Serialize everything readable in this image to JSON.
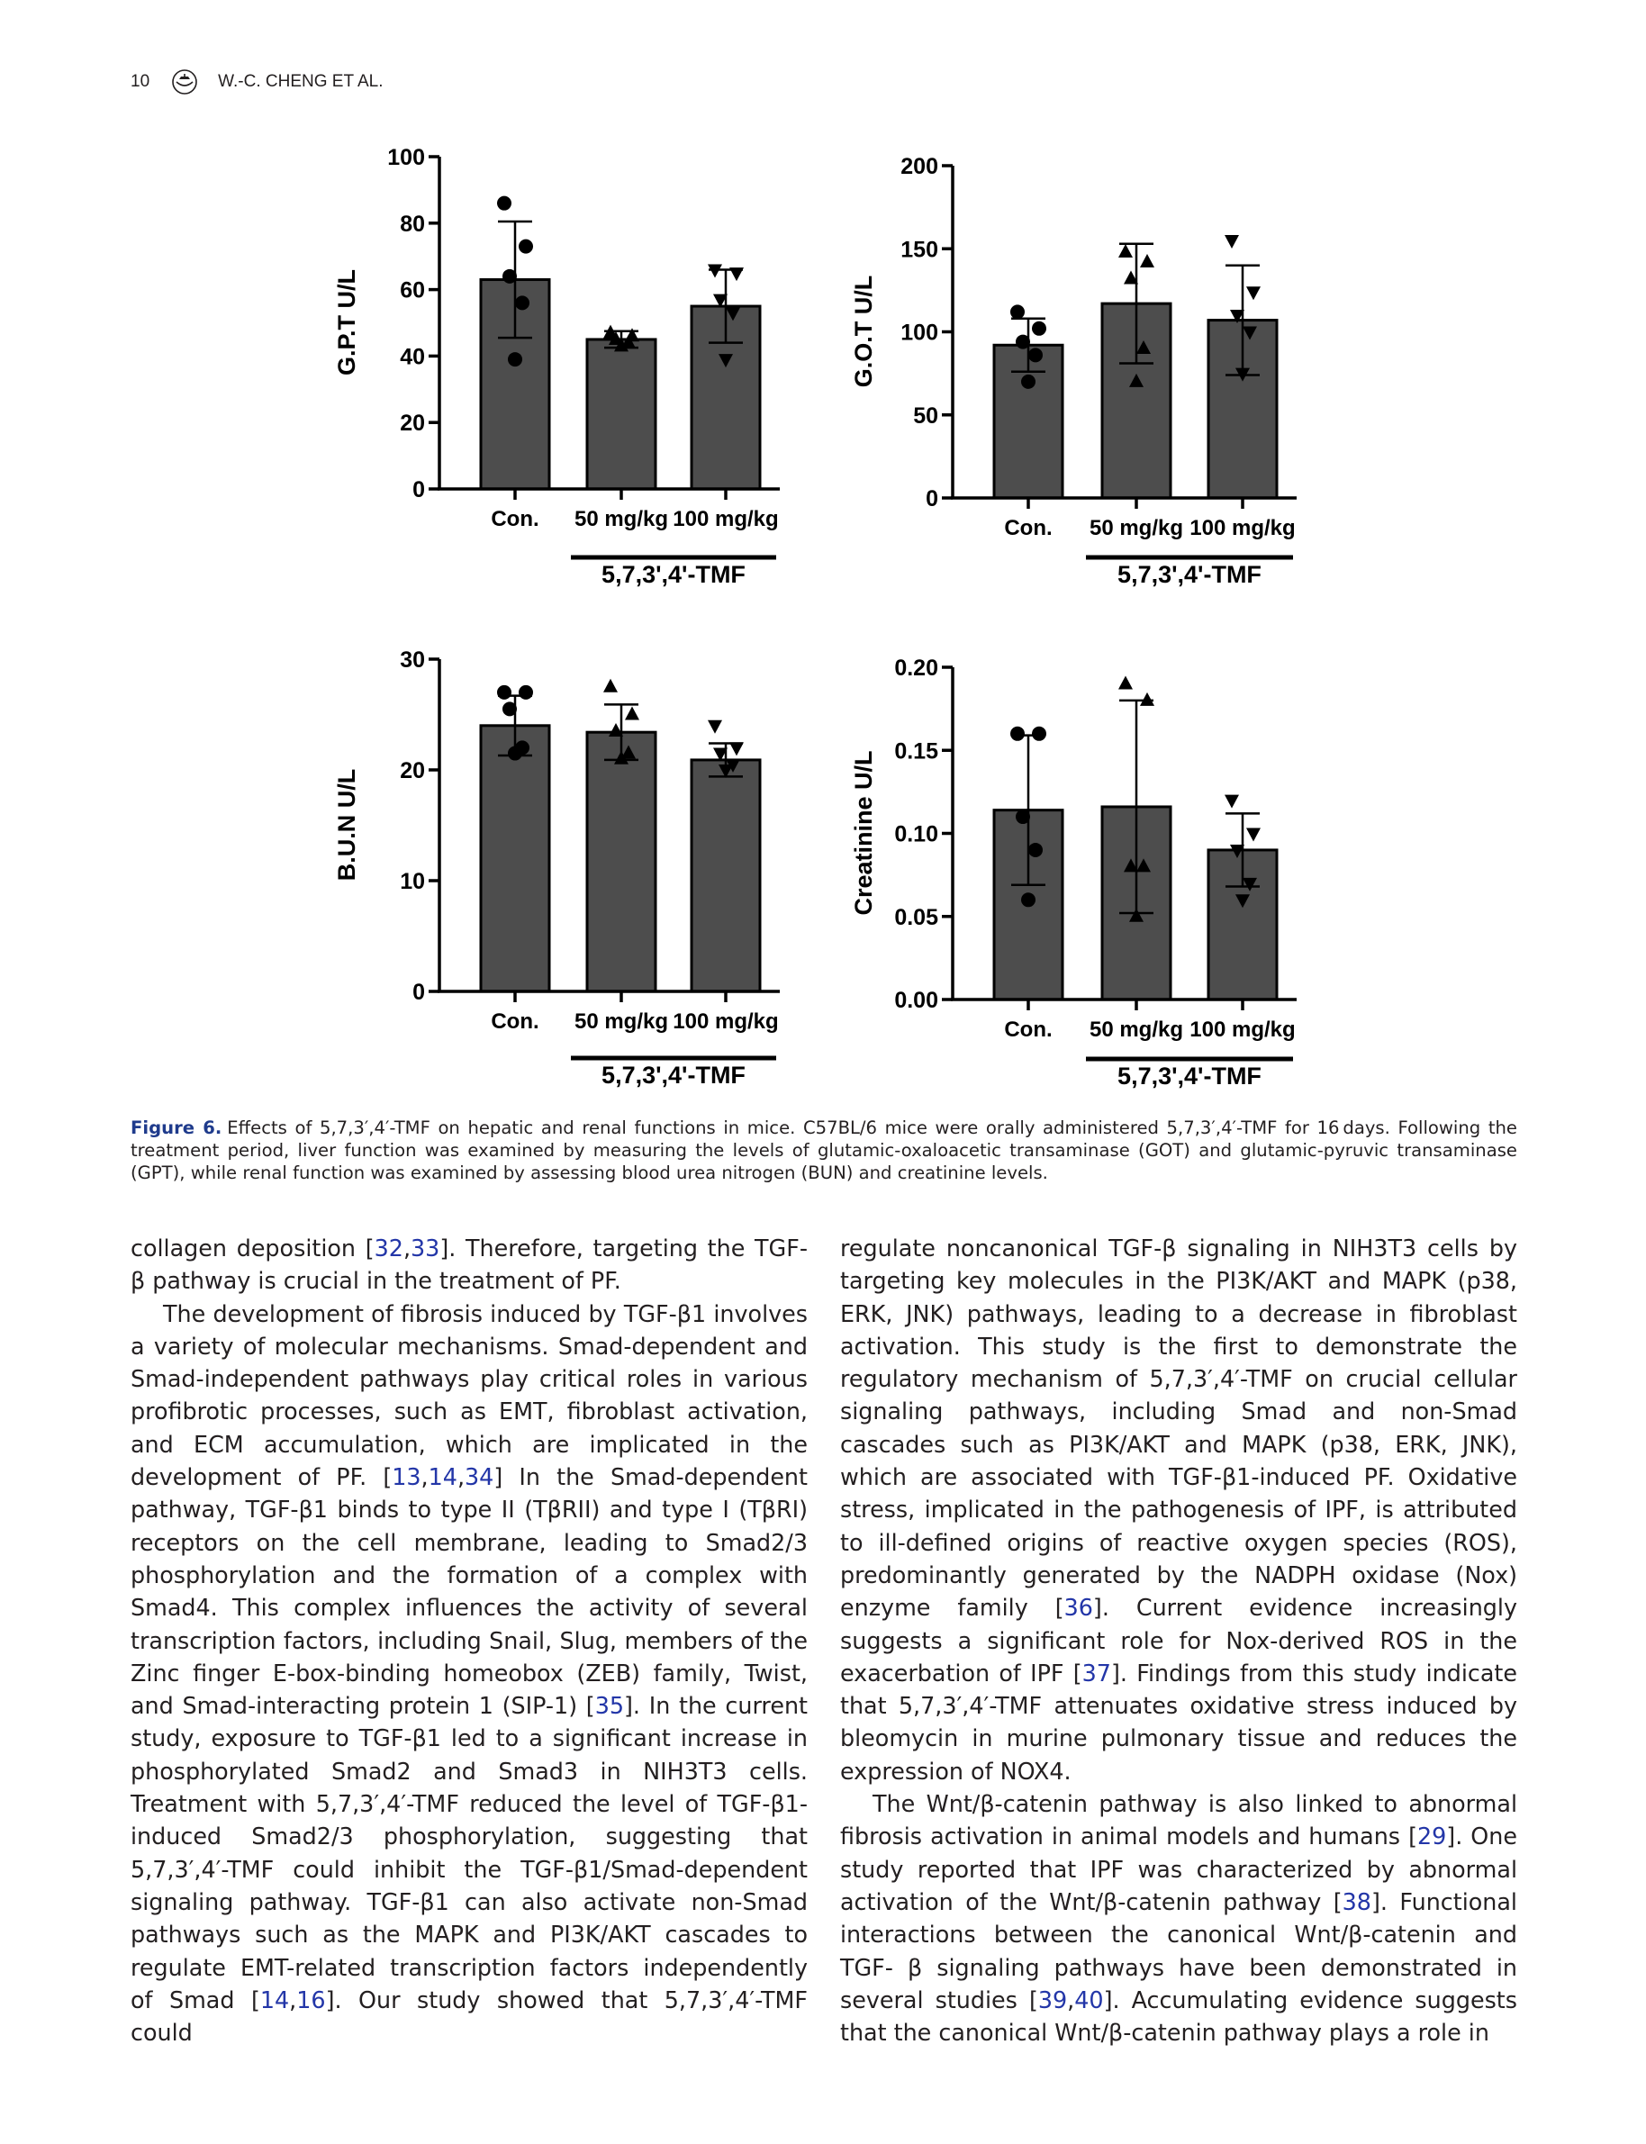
{
  "header": {
    "page_number": "10",
    "authors": "W.-C. CHENG ET AL."
  },
  "chart_data": [
    {
      "type": "bar",
      "ylabel": "G.P.T U/L",
      "categories": [
        "Con.",
        "50 mg/kg",
        "100 mg/kg"
      ],
      "group_label": "5,7,3',4'-TMF",
      "ylim": [
        0,
        100
      ],
      "yticks": [
        "0",
        "20",
        "40",
        "60",
        "80",
        "100"
      ],
      "tick_values": [
        0,
        20,
        40,
        60,
        80,
        100
      ],
      "values": [
        63,
        45,
        55
      ],
      "errors": [
        17.5,
        2.5,
        11
      ],
      "points": [
        [
          86,
          73,
          64,
          56,
          39
        ],
        [
          47,
          46,
          45,
          44,
          43
        ],
        [
          66,
          65,
          57,
          53,
          39
        ]
      ],
      "markers": [
        "circle",
        "triangle-up",
        "triangle-down"
      ]
    },
    {
      "type": "bar",
      "ylabel": "G.O.T U/L",
      "categories": [
        "Con.",
        "50 mg/kg",
        "100 mg/kg"
      ],
      "group_label": "5,7,3',4'-TMF",
      "ylim": [
        0,
        200
      ],
      "yticks": [
        "0",
        "50",
        "100",
        "150",
        "200"
      ],
      "tick_values": [
        0,
        50,
        100,
        150,
        200
      ],
      "values": [
        92,
        117,
        107
      ],
      "errors": [
        16,
        36,
        33
      ],
      "points": [
        [
          112,
          102,
          94,
          86,
          70
        ],
        [
          148,
          142,
          132,
          90,
          70
        ],
        [
          155,
          124,
          110,
          100,
          75
        ]
      ],
      "markers": [
        "circle",
        "triangle-up",
        "triangle-down"
      ]
    },
    {
      "type": "bar",
      "ylabel": "B.U.N U/L",
      "categories": [
        "Con.",
        "50 mg/kg",
        "100 mg/kg"
      ],
      "group_label": "5,7,3',4'-TMF",
      "ylim": [
        0,
        30
      ],
      "yticks": [
        "0",
        "10",
        "20",
        "30"
      ],
      "tick_values": [
        0,
        10,
        20,
        30
      ],
      "values": [
        24,
        23.4,
        20.9
      ],
      "errors": [
        2.7,
        2.5,
        1.5
      ],
      "points": [
        [
          27,
          27,
          25.5,
          22,
          21.5
        ],
        [
          27.5,
          25,
          23.5,
          21.5,
          21
        ],
        [
          24,
          22,
          21.5,
          20.5,
          20
        ]
      ],
      "markers": [
        "circle",
        "triangle-up",
        "triangle-down"
      ]
    },
    {
      "type": "bar",
      "ylabel": "Creatinine U/L",
      "categories": [
        "Con.",
        "50 mg/kg",
        "100 mg/kg"
      ],
      "group_label": "5,7,3',4'-TMF",
      "ylim": [
        0,
        0.2
      ],
      "yticks": [
        "0.00",
        "0.05",
        "0.10",
        "0.15",
        "0.20"
      ],
      "tick_values": [
        0,
        0.05,
        0.1,
        0.15,
        0.2
      ],
      "values": [
        0.114,
        0.116,
        0.09
      ],
      "errors": [
        0.045,
        0.064,
        0.022
      ],
      "points": [
        [
          0.16,
          0.16,
          0.11,
          0.09,
          0.06
        ],
        [
          0.19,
          0.18,
          0.08,
          0.08,
          0.05
        ],
        [
          0.12,
          0.1,
          0.09,
          0.07,
          0.06
        ]
      ],
      "markers": [
        "circle",
        "triangle-up",
        "triangle-down"
      ]
    }
  ],
  "caption": {
    "label": "Figure 6.",
    "text": "Effects of 5,7,3′,4′-TMF on hepatic and renal functions in mice. C57BL/6 mice were orally administered 5,7,3′,4′-TMF for 16 days. Following the treatment period, liver function was examined by measuring the levels of glutamic-oxaloacetic transaminase (GOT) and glutamic-pyruvic transaminase (GPT), while renal function was examined by assessing blood urea nitrogen (BUN) and creatinine levels."
  },
  "body": {
    "left": [
      {
        "indent": false,
        "segments": [
          {
            "t": "collagen deposition ["
          },
          {
            "t": "32",
            "ref": true
          },
          {
            "t": ","
          },
          {
            "t": "33",
            "ref": true
          },
          {
            "t": "]. Therefore, targeting the TGF-β pathway is crucial in the treatment of PF."
          }
        ]
      },
      {
        "indent": true,
        "segments": [
          {
            "t": "The development of fibrosis induced by TGF-β1 involves a variety of molecular mechanisms. Smad-dependent and Smad-independent pathways play critical roles in various profibrotic processes, such as EMT, fibroblast activation, and ECM accumulation, which are implicated in the development of PF. ["
          },
          {
            "t": "13",
            "ref": true
          },
          {
            "t": ","
          },
          {
            "t": "14",
            "ref": true
          },
          {
            "t": ","
          },
          {
            "t": "34",
            "ref": true
          },
          {
            "t": "] In the Smad-dependent pathway, TGF-β1 binds to type II (TβRII) and type I (TβRI) receptors on the cell membrane, leading to Smad2/3 phosphorylation and the formation of a complex with Smad4. This complex influences the activity of several transcription factors, including Snail, Slug, members of the Zinc finger E-box-binding homeobox (ZEB) family, Twist, and Smad-interacting protein 1 (SIP-1) ["
          },
          {
            "t": "35",
            "ref": true
          },
          {
            "t": "]. In the current study, exposure to TGF-β1 led to a significant increase in phosphorylated Smad2 and Smad3 in NIH3T3 cells. Treatment with 5,7,3′,4′-TMF reduced the level of TGF-β1-induced Smad2/3 phosphorylation, suggesting that 5,7,3′,4′-TMF could inhibit the TGF-β1/Smad-dependent signaling pathway. TGF-β1 can also activate non-Smad pathways such as the MAPK and PI3K/AKT cascades to regulate EMT-related transcription factors independently of Smad ["
          },
          {
            "t": "14",
            "ref": true
          },
          {
            "t": ","
          },
          {
            "t": "16",
            "ref": true
          },
          {
            "t": "]. Our study showed that 5,7,3′,4′-TMF could"
          }
        ]
      }
    ],
    "right": [
      {
        "indent": false,
        "segments": [
          {
            "t": "regulate noncanonical TGF-β signaling in NIH3T3 cells by targeting key molecules in the PI3K/AKT and MAPK (p38, ERK, JNK) pathways, leading to a decrease in fibroblast activation. This study is the first to demonstrate the regulatory mechanism of 5,7,3′,4′-TMF on crucial cellular signaling pathways, including Smad and non-Smad cascades such as PI3K/AKT and MAPK (p38, ERK, JNK), which are associated with TGF-β1-induced PF. Oxidative stress, implicated in the pathogenesis of IPF, is attributed to ill-defined origins of reactive oxygen species (ROS), predominantly generated by the NADPH oxidase (Nox) enzyme family ["
          },
          {
            "t": "36",
            "ref": true
          },
          {
            "t": "]. Current evidence increasingly suggests a significant role for Nox-derived ROS in the exacerbation of IPF ["
          },
          {
            "t": "37",
            "ref": true
          },
          {
            "t": "]. Findings from this study indicate that 5,7,3′,4′-TMF attenuates oxidative stress induced by bleomycin in murine pulmonary tissue and reduces the expression of NOX4."
          }
        ]
      },
      {
        "indent": true,
        "segments": [
          {
            "t": "The Wnt/β-catenin pathway is also linked to abnormal fibrosis activation in animal models and humans ["
          },
          {
            "t": "29",
            "ref": true
          },
          {
            "t": "]. One study reported that IPF was characterized by abnormal activation of the Wnt/β-catenin pathway ["
          },
          {
            "t": "38",
            "ref": true
          },
          {
            "t": "]. Functional interactions between the canonical Wnt/β-catenin and TGF- β signaling pathways have been demonstrated in several studies ["
          },
          {
            "t": "39",
            "ref": true
          },
          {
            "t": ","
          },
          {
            "t": "40",
            "ref": true
          },
          {
            "t": "]. Accumulating evidence suggests that the canonical Wnt/β-catenin pathway plays a role in"
          }
        ]
      }
    ]
  }
}
